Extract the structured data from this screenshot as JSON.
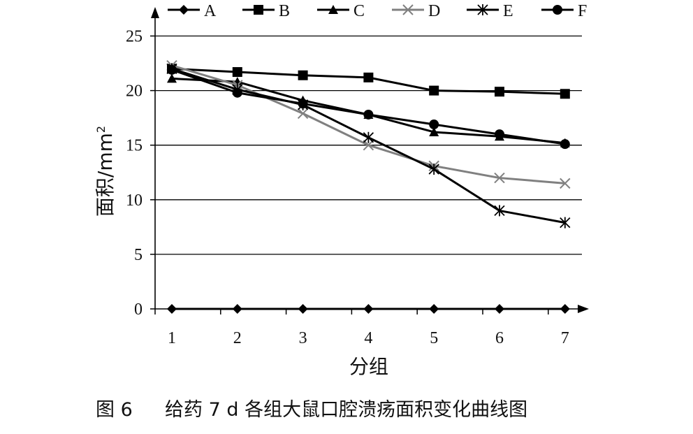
{
  "chart_data": {
    "type": "line",
    "title": "",
    "xlabel": "分组",
    "ylabel": "面积/mm",
    "ylabel_superscript": "2",
    "caption_label": "图 6",
    "caption_text": "给药 7 d 各组大鼠口腔溃疡面积变化曲线图",
    "x": [
      1,
      2,
      3,
      4,
      5,
      6,
      7
    ],
    "x_tick_labels": [
      "1",
      "2",
      "3",
      "4",
      "5",
      "6",
      "7"
    ],
    "y_tick_labels": [
      "0",
      "5",
      "10",
      "15",
      "20",
      "25"
    ],
    "ylim": [
      0,
      25
    ],
    "grid": true,
    "legend_position": "top",
    "series": [
      {
        "name": "A",
        "marker": "diamond",
        "color": "#000000",
        "values": [
          0,
          0,
          0,
          0,
          0,
          0,
          0
        ]
      },
      {
        "name": "B",
        "marker": "square",
        "color": "#000000",
        "values": [
          22.0,
          21.7,
          21.4,
          21.2,
          20.0,
          19.9,
          19.7
        ]
      },
      {
        "name": "C",
        "marker": "triangle",
        "color": "#000000",
        "values": [
          21.1,
          20.8,
          19.1,
          17.8,
          16.2,
          15.8,
          15.2
        ]
      },
      {
        "name": "D",
        "marker": "x",
        "color": "#808080",
        "values": [
          22.3,
          20.5,
          17.9,
          15.0,
          13.1,
          12.0,
          11.5
        ]
      },
      {
        "name": "E",
        "marker": "star",
        "color": "#000000",
        "values": [
          22.0,
          20.1,
          18.7,
          15.7,
          12.8,
          9.0,
          7.9
        ]
      },
      {
        "name": "F",
        "marker": "circle",
        "color": "#000000",
        "values": [
          21.9,
          19.8,
          18.8,
          17.8,
          16.9,
          16.0,
          15.1
        ]
      }
    ]
  }
}
